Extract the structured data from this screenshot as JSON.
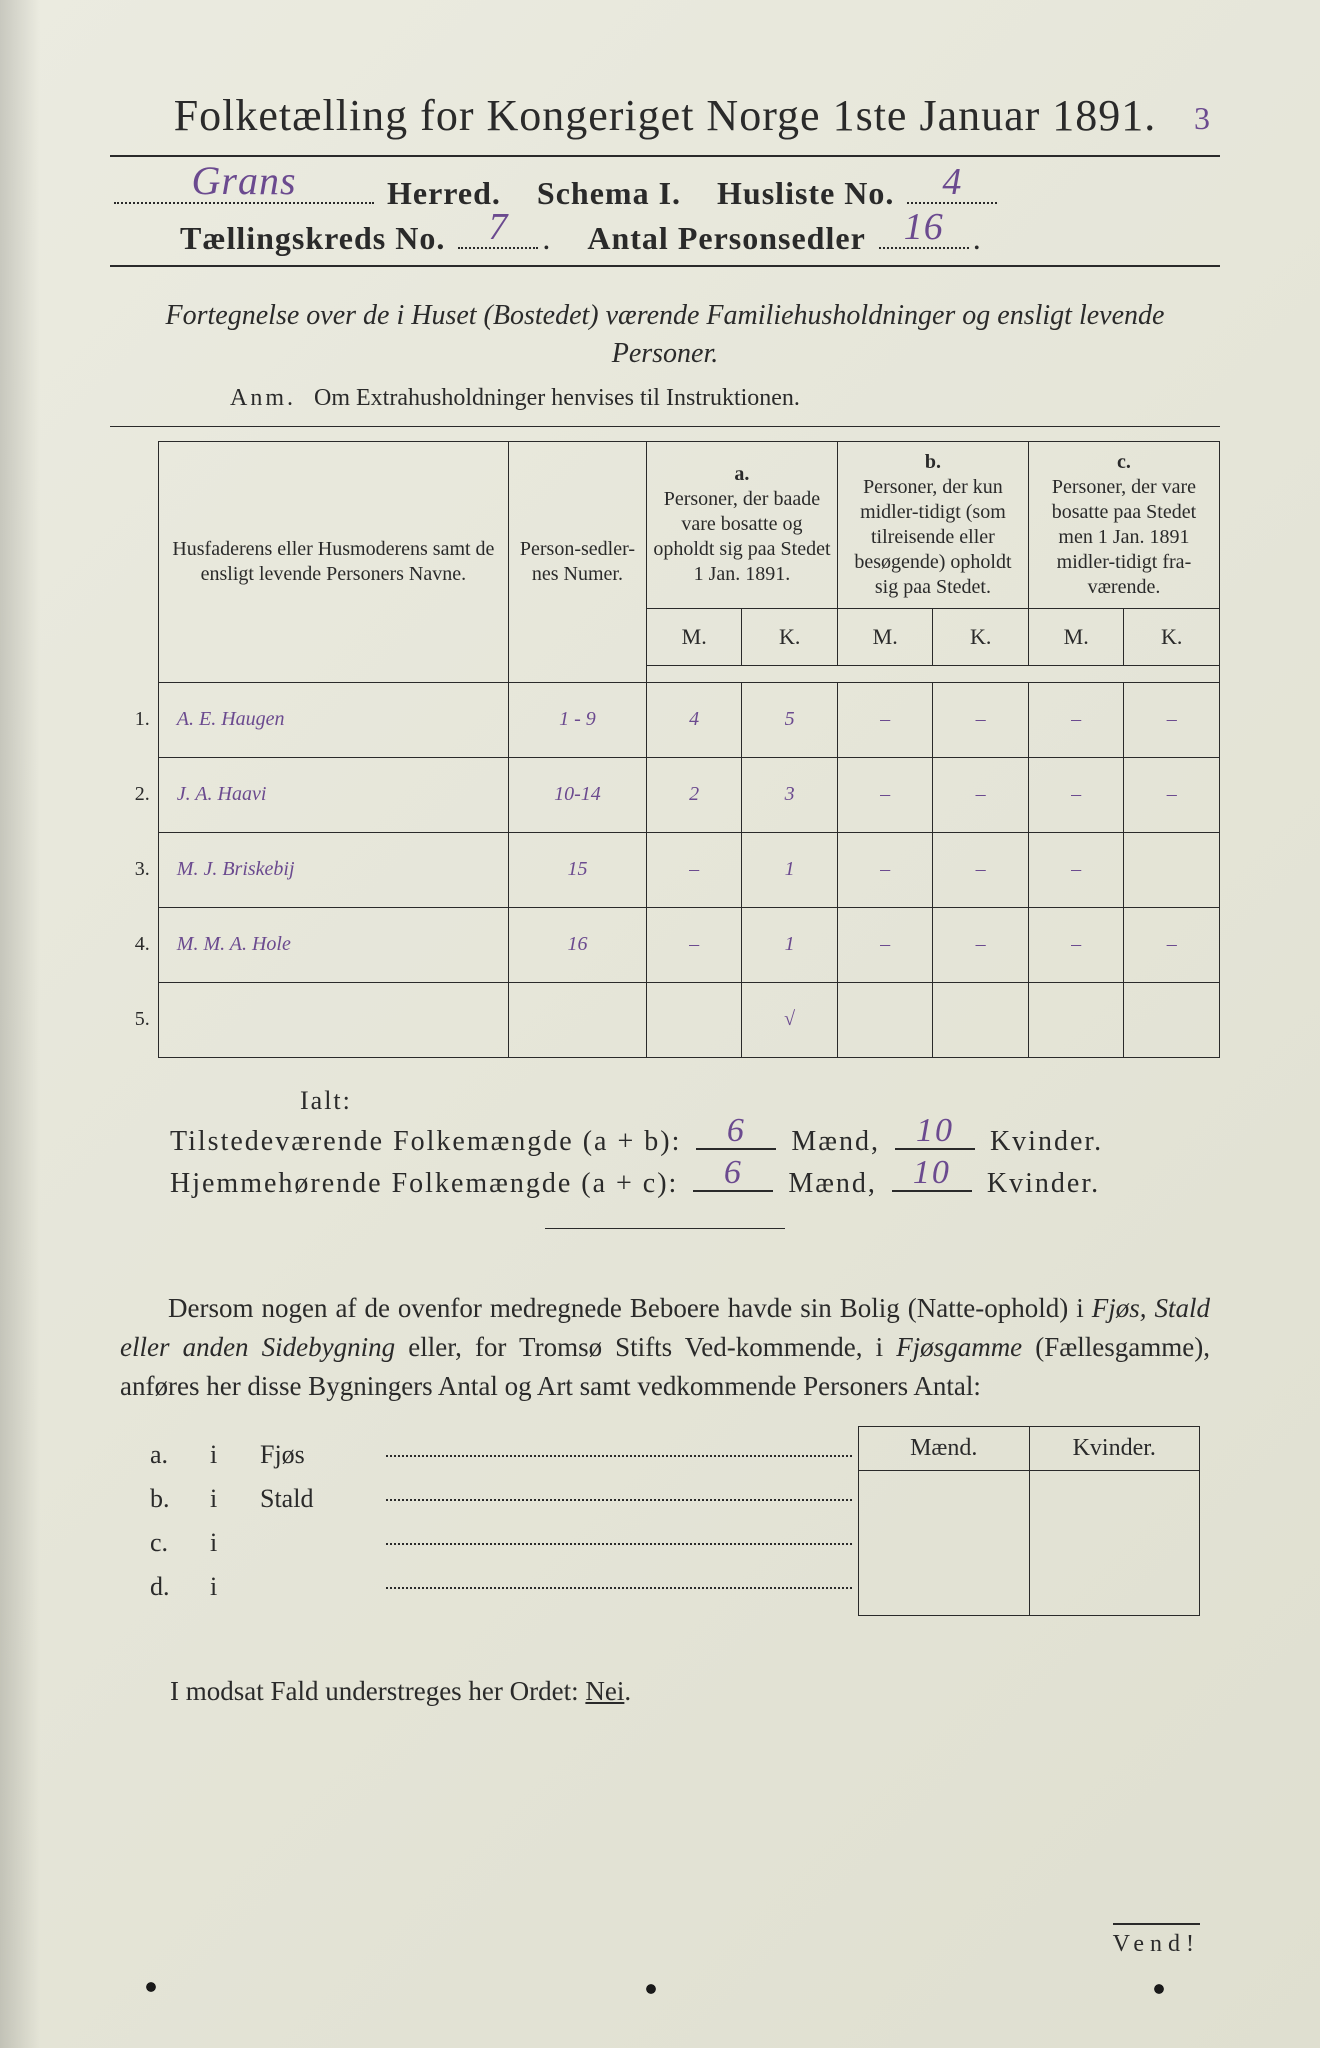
{
  "colors": {
    "ink": "#2a2a2a",
    "handwriting": "#6b4a8f",
    "paper_light": "#ebebe0",
    "paper_dark": "#dfdfd0"
  },
  "title": "Folketælling for Kongeriget Norge 1ste Januar 1891.",
  "header": {
    "herred_hand": "Grans",
    "herred_label": "Herred.",
    "schema_label": "Schema I.",
    "husliste_label": "Husliste No.",
    "husliste_no": "4",
    "husliste_annot": "3",
    "kreds_label": "Tællingskreds No.",
    "kreds_no": "7",
    "antal_label": "Antal Personsedler",
    "antal_no": "16"
  },
  "subtitle": "Fortegnelse over de i Huset (Bostedet) værende Familiehusholdninger og ensligt levende Personer.",
  "anm": {
    "prefix": "Anm.",
    "text": "Om Extrahusholdninger henvises til Instruktionen."
  },
  "table": {
    "widths": {
      "rownum": 36,
      "name": 330,
      "nummer": 130,
      "a": 180,
      "b": 180,
      "c": 180,
      "mk_sub": 90
    },
    "head": {
      "name": "Husfaderens eller Husmoderens samt de ensligt levende Personers Navne.",
      "nummer": "Person-sedler-nes Numer.",
      "a_label": "a.",
      "a_text": "Personer, der baade vare bosatte og opholdt sig paa Stedet 1 Jan. 1891.",
      "b_label": "b.",
      "b_text": "Personer, der kun midler-tidigt (som tilreisende eller besøgende) opholdt sig paa Stedet.",
      "c_label": "c.",
      "c_text": "Personer, der vare bosatte paa Stedet men 1 Jan. 1891 midler-tidigt fra-værende.",
      "M": "M.",
      "K": "K."
    },
    "rows": [
      {
        "n": "1.",
        "name": "A. E. Haugen",
        "num": "1 - 9",
        "aM": "4",
        "aK": "5",
        "bM": "–",
        "bK": "–",
        "cM": "–",
        "cK": "–"
      },
      {
        "n": "2.",
        "name": "J. A. Haavi",
        "num": "10-14",
        "aM": "2",
        "aK": "3",
        "bM": "–",
        "bK": "–",
        "cM": "–",
        "cK": "–"
      },
      {
        "n": "3.",
        "name": "M. J. Briskebij",
        "num": "15",
        "aM": "–",
        "aK": "1",
        "bM": "–",
        "bK": "–",
        "cM": "–",
        "cK": ""
      },
      {
        "n": "4.",
        "name": "M. M. A. Hole",
        "num": "16",
        "aM": "–",
        "aK": "1",
        "bM": "–",
        "bK": "–",
        "cM": "–",
        "cK": "–"
      },
      {
        "n": "5.",
        "name": "",
        "num": "",
        "aM": "",
        "aK": "√",
        "bM": "",
        "bK": "",
        "cM": "",
        "cK": ""
      }
    ]
  },
  "totals": {
    "ialt": "Ialt:",
    "line1_label": "Tilstedeværende Folkemængde (a + b):",
    "line2_label": "Hjemmehørende Folkemængde (a + c):",
    "maend_label": "Mænd,",
    "kvinder_label": "Kvinder.",
    "line1_m": "6",
    "line1_k": "10",
    "line2_m": "6",
    "line2_k": "10"
  },
  "paragraph": {
    "text": "Dersom nogen af de ovenfor medregnede Beboere havde sin Bolig (Natte-ophold) i Fjøs, Stald eller anden Sidebygning eller, for Tromsø Stifts Ved-kommende, i Fjøsgamme (Fællesgamme), anføres her disse Bygningers Antal og Art samt vedkommende Personers Antal:"
  },
  "byg": {
    "maend": "Mænd.",
    "kvinder": "Kvinder.",
    "rows": [
      {
        "lbl": "a.",
        "i": "i",
        "name": "Fjøs"
      },
      {
        "lbl": "b.",
        "i": "i",
        "name": "Stald"
      },
      {
        "lbl": "c.",
        "i": "i",
        "name": ""
      },
      {
        "lbl": "d.",
        "i": "i",
        "name": ""
      }
    ]
  },
  "footer": {
    "text_pre": "I modsat Fald understreges her Ordet: ",
    "nei": "Nei",
    "period": "."
  },
  "vend": "Vend!"
}
